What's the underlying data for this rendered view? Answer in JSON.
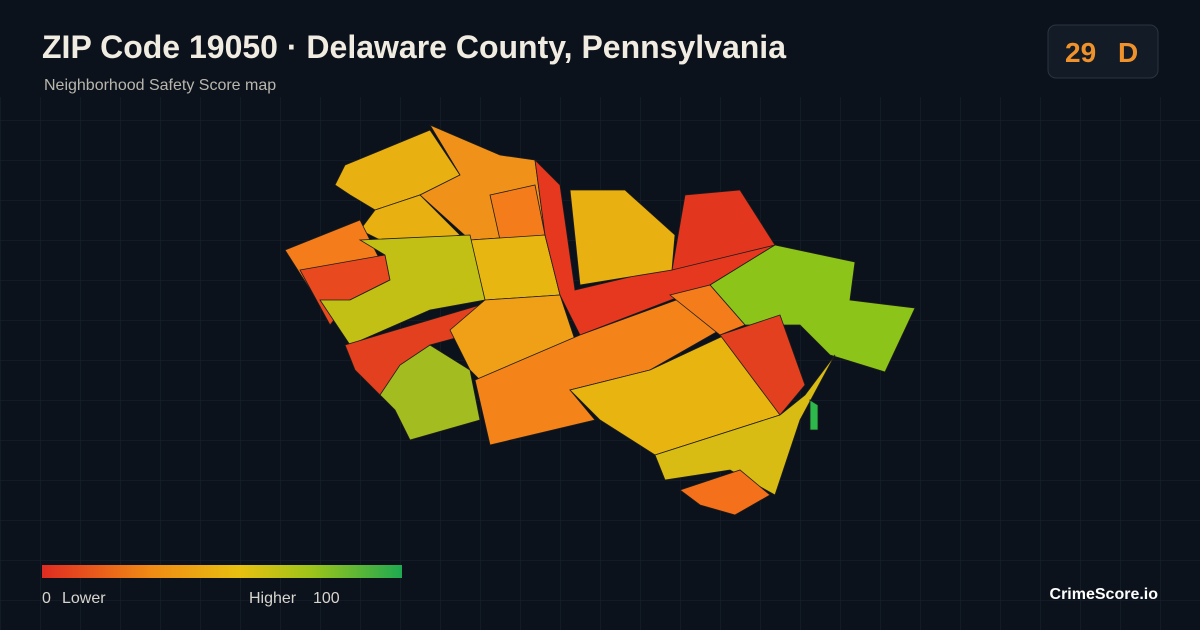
{
  "header": {
    "title": "ZIP Code 19050 · Delaware County, Pennsylvania",
    "subtitle": "Neighborhood Safety Score map"
  },
  "score": {
    "value": 29,
    "grade": "D"
  },
  "legend": {
    "min": 0,
    "min_label": "Lower",
    "max_label": "Higher",
    "max": 100
  },
  "brand": "CrimeScore.io"
}
